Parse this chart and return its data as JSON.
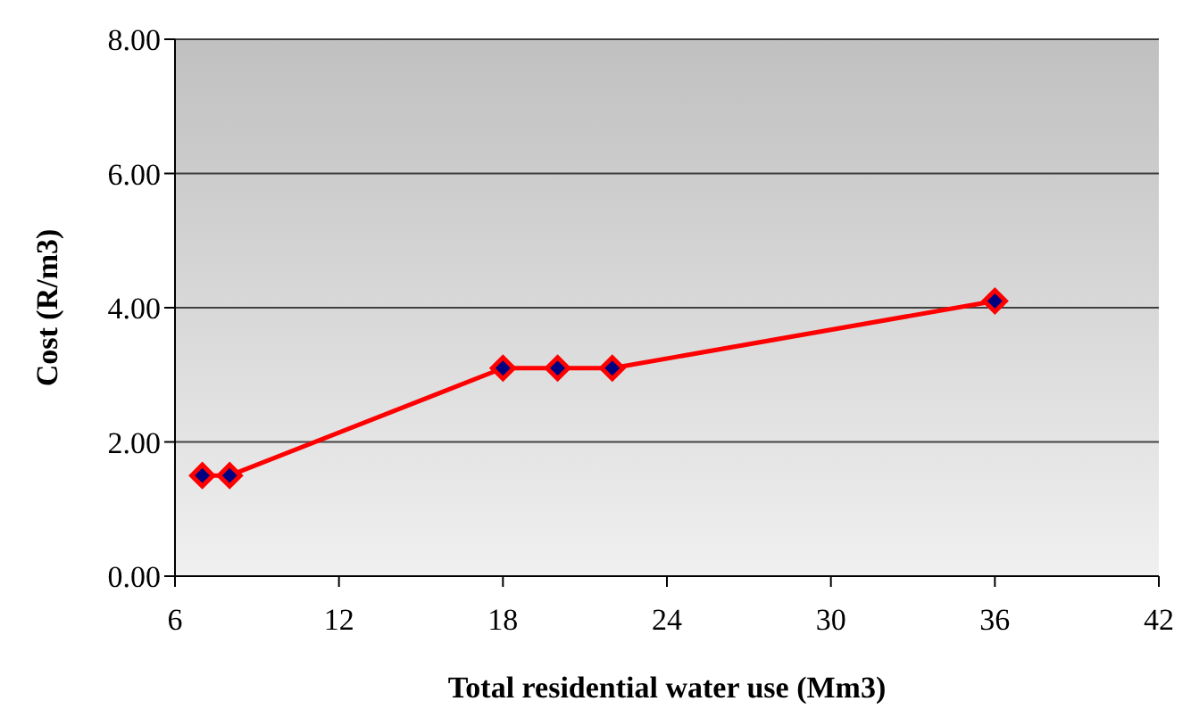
{
  "chart_data": {
    "type": "line",
    "xlabel": "Total residential water use (Mm3)",
    "ylabel": "Cost  (R/m3)",
    "x": [
      7,
      8,
      18,
      20,
      22,
      36
    ],
    "series": [
      {
        "color": "#ff0000",
        "values": [
          1.5,
          1.5,
          3.1,
          3.1,
          3.1,
          4.1
        ]
      }
    ],
    "xlim": [
      6,
      42
    ],
    "xticks": [
      6,
      12,
      18,
      24,
      30,
      36,
      42
    ],
    "ylim": [
      0,
      8
    ],
    "yticks": [
      {
        "value": 0,
        "label": "0.00"
      },
      {
        "value": 2,
        "label": "2.00"
      },
      {
        "value": 4,
        "label": "4.00"
      },
      {
        "value": 6,
        "label": "6.00"
      },
      {
        "value": 8,
        "label": "8.00"
      }
    ],
    "grid": "y",
    "marker": "diamond",
    "line_style": "solid"
  }
}
